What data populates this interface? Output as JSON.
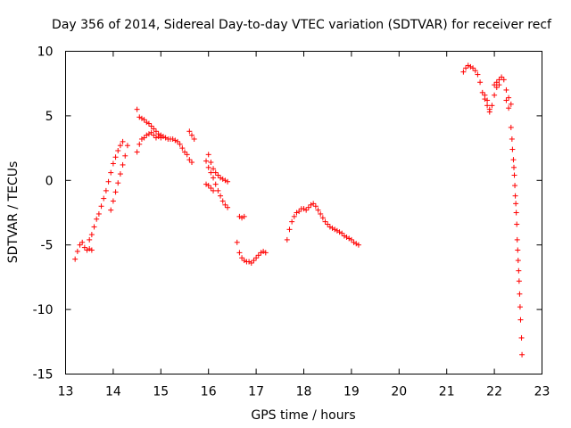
{
  "chart_data": {
    "type": "scatter",
    "title": "Day 356 of 2014, Sidereal Day-to-day VTEC variation (SDTVAR) for receiver recf",
    "xlabel": "GPS time / hours",
    "ylabel": "SDTVAR / TECUs",
    "xlim": [
      13,
      23
    ],
    "ylim": [
      -15,
      10
    ],
    "xticks": [
      13,
      14,
      15,
      16,
      17,
      18,
      19,
      20,
      21,
      22,
      23
    ],
    "yticks": [
      -15,
      -10,
      -5,
      0,
      5,
      10
    ],
    "marker": "+",
    "marker_color": "#ff0000",
    "series": [
      {
        "name": "SDTVAR",
        "points": [
          [
            13.2,
            -6.1
          ],
          [
            13.25,
            -5.5
          ],
          [
            13.3,
            -5.0
          ],
          [
            13.35,
            -4.8
          ],
          [
            13.4,
            -5.2
          ],
          [
            13.45,
            -5.4
          ],
          [
            13.5,
            -5.3
          ],
          [
            13.55,
            -5.4
          ],
          [
            13.5,
            -4.6
          ],
          [
            13.55,
            -4.2
          ],
          [
            13.6,
            -3.6
          ],
          [
            13.65,
            -3.0
          ],
          [
            13.7,
            -2.6
          ],
          [
            13.75,
            -2.0
          ],
          [
            13.8,
            -1.4
          ],
          [
            13.85,
            -0.8
          ],
          [
            13.9,
            -0.1
          ],
          [
            13.95,
            0.6
          ],
          [
            14.0,
            1.3
          ],
          [
            14.05,
            1.8
          ],
          [
            14.1,
            2.3
          ],
          [
            14.15,
            2.7
          ],
          [
            14.2,
            3.0
          ],
          [
            13.95,
            -2.3
          ],
          [
            14.0,
            -1.6
          ],
          [
            14.05,
            -0.9
          ],
          [
            14.1,
            -0.2
          ],
          [
            14.15,
            0.5
          ],
          [
            14.2,
            1.2
          ],
          [
            14.25,
            1.9
          ],
          [
            14.3,
            2.7
          ],
          [
            14.5,
            5.5
          ],
          [
            14.55,
            4.9
          ],
          [
            14.6,
            4.8
          ],
          [
            14.65,
            4.7
          ],
          [
            14.7,
            4.5
          ],
          [
            14.75,
            4.4
          ],
          [
            14.8,
            4.2
          ],
          [
            14.85,
            4.0
          ],
          [
            14.9,
            3.8
          ],
          [
            14.95,
            3.6
          ],
          [
            15.0,
            3.5
          ],
          [
            14.5,
            2.2
          ],
          [
            14.55,
            2.8
          ],
          [
            14.6,
            3.2
          ],
          [
            14.65,
            3.3
          ],
          [
            14.7,
            3.5
          ],
          [
            14.75,
            3.6
          ],
          [
            14.8,
            3.7
          ],
          [
            14.85,
            3.5
          ],
          [
            14.9,
            3.3
          ],
          [
            14.95,
            3.4
          ],
          [
            15.0,
            3.3
          ],
          [
            15.05,
            3.4
          ],
          [
            15.1,
            3.3
          ],
          [
            15.15,
            3.2
          ],
          [
            15.2,
            3.2
          ],
          [
            15.25,
            3.2
          ],
          [
            15.3,
            3.1
          ],
          [
            15.35,
            3.0
          ],
          [
            15.4,
            2.8
          ],
          [
            15.45,
            2.5
          ],
          [
            15.5,
            2.2
          ],
          [
            15.55,
            2.0
          ],
          [
            15.6,
            1.6
          ],
          [
            15.65,
            1.4
          ],
          [
            15.6,
            3.8
          ],
          [
            15.65,
            3.5
          ],
          [
            15.7,
            3.2
          ],
          [
            15.95,
            1.5
          ],
          [
            16.0,
            1.0
          ],
          [
            16.05,
            0.6
          ],
          [
            16.1,
            0.2
          ],
          [
            16.15,
            -0.3
          ],
          [
            16.2,
            -0.8
          ],
          [
            16.25,
            -1.2
          ],
          [
            16.3,
            -1.6
          ],
          [
            16.35,
            -1.9
          ],
          [
            16.4,
            -2.1
          ],
          [
            16.0,
            2.0
          ],
          [
            16.05,
            1.4
          ],
          [
            16.1,
            0.9
          ],
          [
            16.15,
            0.6
          ],
          [
            16.2,
            0.4
          ],
          [
            16.25,
            0.2
          ],
          [
            16.3,
            0.1
          ],
          [
            16.35,
            0.0
          ],
          [
            16.4,
            -0.1
          ],
          [
            15.95,
            -0.3
          ],
          [
            16.0,
            -0.4
          ],
          [
            16.05,
            -0.6
          ],
          [
            16.1,
            -0.8
          ],
          [
            16.6,
            -4.8
          ],
          [
            16.65,
            -5.6
          ],
          [
            16.7,
            -6.0
          ],
          [
            16.75,
            -6.2
          ],
          [
            16.8,
            -6.3
          ],
          [
            16.85,
            -6.3
          ],
          [
            16.9,
            -6.4
          ],
          [
            16.95,
            -6.2
          ],
          [
            17.0,
            -6.0
          ],
          [
            17.05,
            -5.8
          ],
          [
            17.1,
            -5.6
          ],
          [
            17.15,
            -5.5
          ],
          [
            17.2,
            -5.6
          ],
          [
            16.65,
            -2.8
          ],
          [
            16.7,
            -2.9
          ],
          [
            16.75,
            -2.8
          ],
          [
            17.65,
            -4.6
          ],
          [
            17.7,
            -3.8
          ],
          [
            17.75,
            -3.2
          ],
          [
            17.8,
            -2.8
          ],
          [
            17.85,
            -2.5
          ],
          [
            17.9,
            -2.4
          ],
          [
            17.95,
            -2.2
          ],
          [
            18.0,
            -2.2
          ],
          [
            18.05,
            -2.3
          ],
          [
            18.1,
            -2.1
          ],
          [
            18.15,
            -1.9
          ],
          [
            18.2,
            -1.8
          ],
          [
            18.25,
            -2.0
          ],
          [
            18.3,
            -2.3
          ],
          [
            18.35,
            -2.6
          ],
          [
            18.4,
            -2.9
          ],
          [
            18.45,
            -3.2
          ],
          [
            18.5,
            -3.4
          ],
          [
            18.55,
            -3.6
          ],
          [
            18.6,
            -3.7
          ],
          [
            18.65,
            -3.8
          ],
          [
            18.7,
            -3.9
          ],
          [
            18.75,
            -4.0
          ],
          [
            18.8,
            -4.1
          ],
          [
            18.85,
            -4.3
          ],
          [
            18.9,
            -4.4
          ],
          [
            18.95,
            -4.5
          ],
          [
            19.0,
            -4.6
          ],
          [
            19.05,
            -4.8
          ],
          [
            19.1,
            -4.9
          ],
          [
            19.15,
            -5.0
          ],
          [
            21.35,
            8.4
          ],
          [
            21.4,
            8.7
          ],
          [
            21.45,
            8.9
          ],
          [
            21.5,
            8.8
          ],
          [
            21.55,
            8.7
          ],
          [
            21.6,
            8.5
          ],
          [
            21.65,
            8.2
          ],
          [
            21.7,
            7.6
          ],
          [
            21.75,
            6.8
          ],
          [
            21.8,
            6.3
          ],
          [
            21.85,
            5.8
          ],
          [
            21.9,
            5.3
          ],
          [
            21.95,
            5.8
          ],
          [
            22.0,
            6.6
          ],
          [
            22.05,
            7.2
          ],
          [
            22.1,
            7.8
          ],
          [
            22.15,
            8.0
          ],
          [
            22.2,
            7.8
          ],
          [
            22.25,
            7.0
          ],
          [
            22.3,
            6.4
          ],
          [
            22.35,
            5.9
          ],
          [
            21.8,
            6.6
          ],
          [
            21.85,
            6.2
          ],
          [
            21.9,
            5.5
          ],
          [
            22.0,
            7.4
          ],
          [
            22.05,
            7.6
          ],
          [
            22.1,
            7.4
          ],
          [
            22.25,
            6.2
          ],
          [
            22.3,
            5.6
          ],
          [
            22.35,
            4.1
          ],
          [
            22.37,
            3.2
          ],
          [
            22.38,
            2.4
          ],
          [
            22.4,
            1.6
          ],
          [
            22.41,
            1.0
          ],
          [
            22.42,
            0.4
          ],
          [
            22.43,
            -0.4
          ],
          [
            22.44,
            -1.2
          ],
          [
            22.45,
            -1.8
          ],
          [
            22.46,
            -2.5
          ],
          [
            22.47,
            -3.4
          ],
          [
            22.48,
            -4.6
          ],
          [
            22.49,
            -5.4
          ],
          [
            22.5,
            -6.2
          ],
          [
            22.51,
            -7.0
          ],
          [
            22.52,
            -7.8
          ],
          [
            22.53,
            -8.8
          ],
          [
            22.54,
            -9.8
          ],
          [
            22.55,
            -10.8
          ],
          [
            22.57,
            -12.2
          ],
          [
            22.58,
            -13.5
          ]
        ]
      }
    ]
  }
}
